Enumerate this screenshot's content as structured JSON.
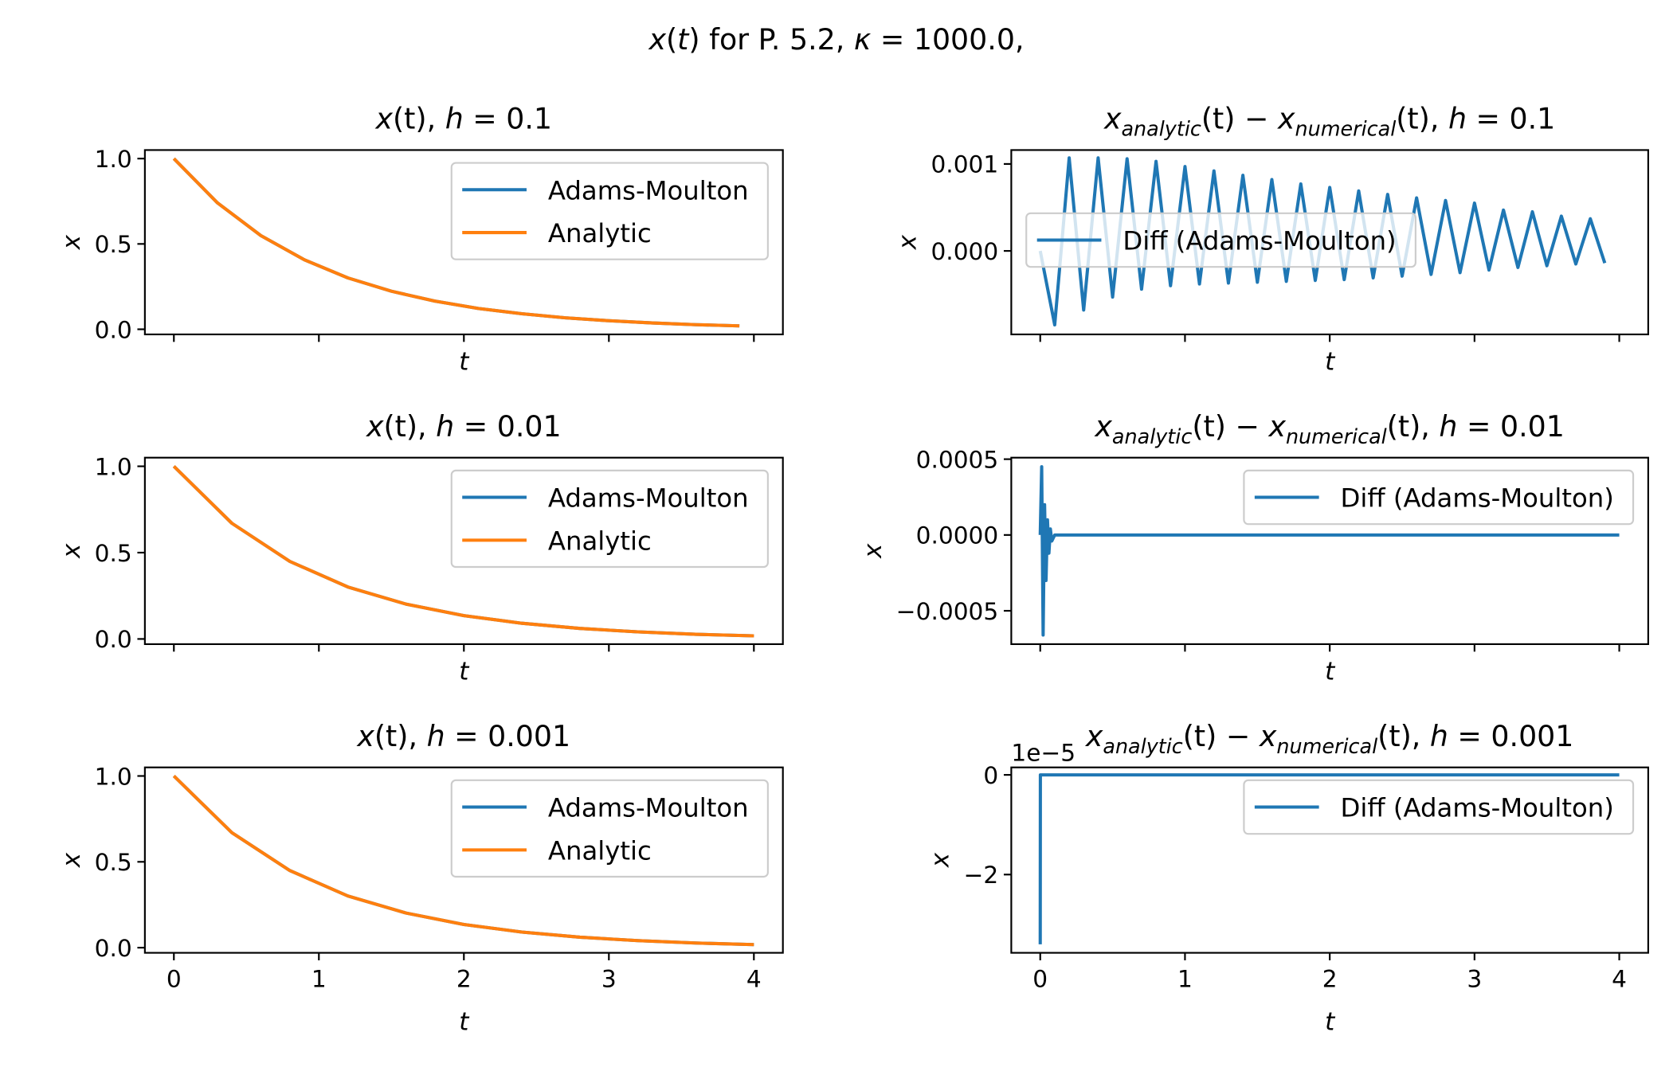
{
  "suptitle": [
    {
      "text": "x",
      "style": "italic"
    },
    {
      "text": "(",
      "style": "normal"
    },
    {
      "text": "t",
      "style": "italic"
    },
    {
      "text": ") for P. 5.2, ",
      "style": "normal"
    },
    {
      "text": "κ",
      "style": "italic"
    },
    {
      "text": " = 1000.0,",
      "style": "normal"
    }
  ],
  "chart_data": [
    {
      "type": "line",
      "title": [
        {
          "text": "x",
          "style": "italic"
        },
        {
          "text": "(t), ",
          "style": "normal"
        },
        {
          "text": "h",
          "style": "italic"
        },
        {
          "text": " = 0.1",
          "style": "normal"
        }
      ],
      "xlabel": "t",
      "ylabel": "x",
      "legend": "upper right",
      "show_xtick_labels": false,
      "x": [
        0,
        0.3,
        0.6,
        0.9,
        1.2,
        1.5,
        1.8,
        2.1,
        2.4,
        2.7,
        3.0,
        3.3,
        3.6,
        3.9
      ],
      "series": [
        {
          "name": "Adams-Moulton",
          "color": "#1f77b4",
          "values": [
            1,
            0.741,
            0.549,
            0.407,
            0.301,
            0.223,
            0.165,
            0.122,
            0.091,
            0.067,
            0.05,
            0.037,
            0.027,
            0.02
          ]
        },
        {
          "name": "Analytic",
          "color": "#ff7f0e",
          "values": [
            1,
            0.741,
            0.549,
            0.407,
            0.301,
            0.223,
            0.165,
            0.122,
            0.091,
            0.067,
            0.05,
            0.037,
            0.027,
            0.02
          ]
        }
      ],
      "xlim": [
        -0.2,
        4.2
      ],
      "xticks": [
        0,
        1,
        2,
        3,
        4
      ],
      "ylim": [
        -0.03,
        1.05
      ],
      "yticks": [
        {
          "value": 0,
          "label": "0.0"
        },
        0.5,
        {
          "value": 1,
          "label": "1.0"
        }
      ]
    },
    {
      "type": "line",
      "title": [
        {
          "text": "x",
          "style": "italic"
        },
        {
          "text": "analytic",
          "style": "sub"
        },
        {
          "text": "(t) − ",
          "style": "normal"
        },
        {
          "text": "x",
          "style": "italic"
        },
        {
          "text": "numerical",
          "style": "sub"
        },
        {
          "text": "(t), ",
          "style": "normal"
        },
        {
          "text": "h",
          "style": "italic"
        },
        {
          "text": " = 0.1",
          "style": "normal"
        }
      ],
      "xlabel": "t",
      "ylabel": "x",
      "legend": "center left",
      "show_xtick_labels": false,
      "x": [
        0,
        0.1,
        0.2,
        0.3,
        0.4,
        0.5,
        0.6,
        0.7,
        0.8,
        0.9,
        1.0,
        1.1,
        1.2,
        1.3,
        1.4,
        1.5,
        1.6,
        1.7,
        1.8,
        1.9,
        2.0,
        2.1,
        2.2,
        2.3,
        2.4,
        2.5,
        2.6,
        2.7,
        2.8,
        2.9,
        3.0,
        3.1,
        3.2,
        3.3,
        3.4,
        3.5,
        3.6,
        3.7,
        3.8,
        3.9
      ],
      "series": [
        {
          "name": "Diff (Adams-Moulton)",
          "color": "#1f77b4",
          "values": [
            0,
            -0.00085,
            0.00107,
            -0.00068,
            0.00107,
            -0.00053,
            0.00106,
            -0.00044,
            0.00103,
            -0.0004,
            0.00097,
            -0.00038,
            0.00092,
            -0.00037,
            0.00087,
            -0.00036,
            0.00082,
            -0.00035,
            0.00077,
            -0.00034,
            0.00073,
            -0.00033,
            0.00069,
            -0.00031,
            0.00065,
            -0.00029,
            0.00061,
            -0.00027,
            0.00058,
            -0.00025,
            0.00055,
            -0.00022,
            0.00047,
            -0.00019,
            0.00045,
            -0.00017,
            0.0004,
            -0.00015,
            0.00037,
            -0.00014
          ]
        }
      ],
      "xlim": [
        -0.2,
        4.2
      ],
      "xticks": [
        0,
        1,
        2,
        3,
        4
      ],
      "ylim": [
        -0.00096,
        0.00116
      ],
      "yticks": [
        {
          "value": 0,
          "label": "0.000"
        },
        0.001
      ]
    },
    {
      "type": "line",
      "title": [
        {
          "text": "x",
          "style": "italic"
        },
        {
          "text": "(t), ",
          "style": "normal"
        },
        {
          "text": "h",
          "style": "italic"
        },
        {
          "text": " = 0.01",
          "style": "normal"
        }
      ],
      "xlabel": "t",
      "ylabel": "x",
      "legend": "upper right",
      "show_xtick_labels": false,
      "x": [
        0,
        0.4,
        0.8,
        1.2,
        1.6,
        2.0,
        2.4,
        2.8,
        3.2,
        3.6,
        4.0
      ],
      "series": [
        {
          "name": "Adams-Moulton",
          "color": "#1f77b4",
          "values": [
            1,
            0.67,
            0.449,
            0.301,
            0.202,
            0.135,
            0.091,
            0.061,
            0.041,
            0.027,
            0.018
          ]
        },
        {
          "name": "Analytic",
          "color": "#ff7f0e",
          "values": [
            1,
            0.67,
            0.449,
            0.301,
            0.202,
            0.135,
            0.091,
            0.061,
            0.041,
            0.027,
            0.018
          ]
        }
      ],
      "xlim": [
        -0.2,
        4.2
      ],
      "xticks": [
        0,
        1,
        2,
        3,
        4
      ],
      "ylim": [
        -0.03,
        1.05
      ],
      "yticks": [
        {
          "value": 0,
          "label": "0.0"
        },
        0.5,
        {
          "value": 1,
          "label": "1.0"
        }
      ]
    },
    {
      "type": "line",
      "title": [
        {
          "text": "x",
          "style": "italic"
        },
        {
          "text": "analytic",
          "style": "sub"
        },
        {
          "text": "(t) − ",
          "style": "normal"
        },
        {
          "text": "x",
          "style": "italic"
        },
        {
          "text": "numerical",
          "style": "sub"
        },
        {
          "text": "(t), ",
          "style": "normal"
        },
        {
          "text": "h",
          "style": "italic"
        },
        {
          "text": " = 0.01",
          "style": "normal"
        }
      ],
      "xlabel": "t",
      "ylabel": "x",
      "legend": "upper right",
      "show_xtick_labels": false,
      "x": [
        0,
        0.01,
        0.02,
        0.03,
        0.04,
        0.05,
        0.06,
        0.07,
        0.08,
        0.1,
        1,
        2,
        3,
        4
      ],
      "series": [
        {
          "name": "Diff (Adams-Moulton)",
          "color": "#1f77b4",
          "values": [
            0,
            0.00045,
            -0.00066,
            0.0002,
            -0.0003,
            0.0001,
            -0.00012,
            4e-05,
            -4e-05,
            0,
            0,
            0,
            0,
            0
          ]
        }
      ],
      "xlim": [
        -0.2,
        4.2
      ],
      "xticks": [
        0,
        1,
        2,
        3,
        4
      ],
      "ylim": [
        -0.00072,
        0.00051
      ],
      "yticks": [
        {
          "value": -0.0005,
          "label": "−0.0005"
        },
        {
          "value": 0,
          "label": "0.0000"
        },
        0.0005
      ]
    },
    {
      "type": "line",
      "title": [
        {
          "text": "x",
          "style": "italic"
        },
        {
          "text": "(t), ",
          "style": "normal"
        },
        {
          "text": "h",
          "style": "italic"
        },
        {
          "text": " = 0.001",
          "style": "normal"
        }
      ],
      "xlabel": "t",
      "ylabel": "x",
      "legend": "upper right",
      "show_xtick_labels": true,
      "x": [
        0,
        0.4,
        0.8,
        1.2,
        1.6,
        2.0,
        2.4,
        2.8,
        3.2,
        3.6,
        4.0
      ],
      "series": [
        {
          "name": "Adams-Moulton",
          "color": "#1f77b4",
          "values": [
            1,
            0.67,
            0.449,
            0.301,
            0.202,
            0.135,
            0.091,
            0.061,
            0.041,
            0.027,
            0.018
          ]
        },
        {
          "name": "Analytic",
          "color": "#ff7f0e",
          "values": [
            1,
            0.67,
            0.449,
            0.301,
            0.202,
            0.135,
            0.091,
            0.061,
            0.041,
            0.027,
            0.018
          ]
        }
      ],
      "xlim": [
        -0.2,
        4.2
      ],
      "xticks": [
        0,
        1,
        2,
        3,
        4
      ],
      "ylim": [
        -0.03,
        1.05
      ],
      "yticks": [
        {
          "value": 0,
          "label": "0.0"
        },
        0.5,
        {
          "value": 1,
          "label": "1.0"
        }
      ]
    },
    {
      "type": "line",
      "title": [
        {
          "text": "x",
          "style": "italic"
        },
        {
          "text": "analytic",
          "style": "sub"
        },
        {
          "text": "(t) − ",
          "style": "normal"
        },
        {
          "text": "x",
          "style": "italic"
        },
        {
          "text": "numerical",
          "style": "sub"
        },
        {
          "text": "(t), ",
          "style": "normal"
        },
        {
          "text": "h",
          "style": "italic"
        },
        {
          "text": " = 0.001",
          "style": "normal"
        }
      ],
      "xlabel": "t",
      "ylabel": "x",
      "legend": "upper right",
      "show_xtick_labels": true,
      "offset_label": "1e−5",
      "x": [
        0,
        0.001,
        1,
        2,
        3,
        4
      ],
      "series": [
        {
          "name": "Diff (Adams-Moulton)",
          "color": "#1f77b4",
          "values": [
            -3.4,
            0,
            0,
            0,
            0,
            0
          ]
        }
      ],
      "xlim": [
        -0.2,
        4.2
      ],
      "xticks": [
        0,
        1,
        2,
        3,
        4
      ],
      "ylim": [
        -3.57,
        0.15
      ],
      "yticks": [
        {
          "value": -2,
          "label": "−2"
        },
        0
      ]
    }
  ]
}
